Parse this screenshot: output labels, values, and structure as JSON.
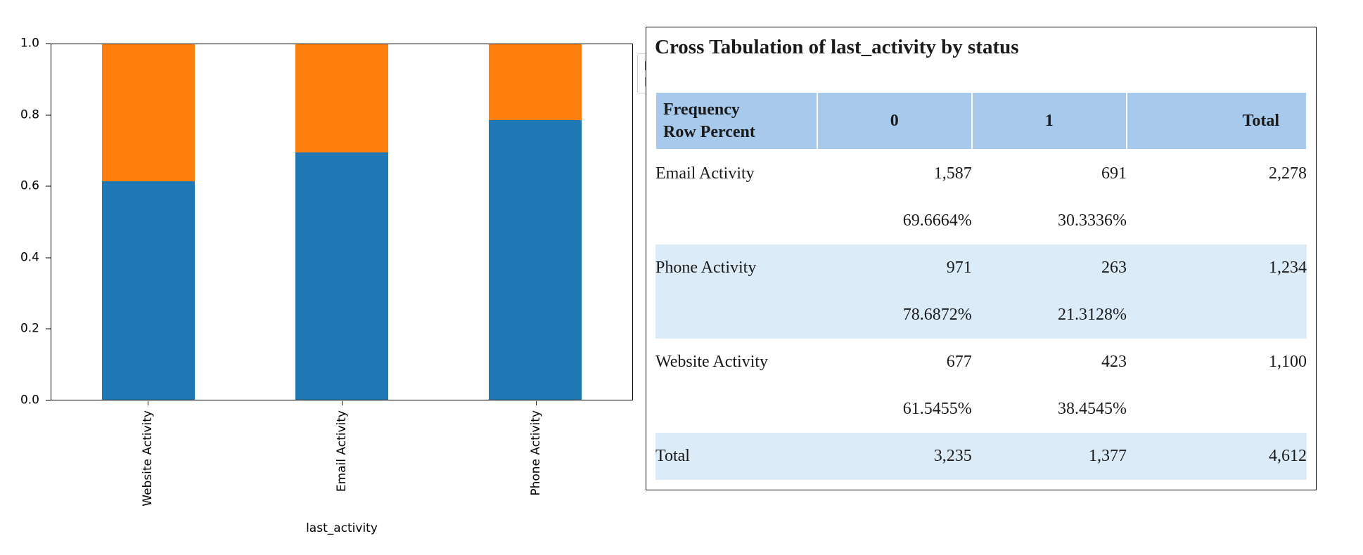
{
  "chart_data": {
    "type": "bar",
    "stacked": true,
    "normalized": true,
    "title": "",
    "xlabel": "last_activity",
    "ylabel": "",
    "categories": [
      "Website Activity",
      "Email Activity",
      "Phone Activity"
    ],
    "series": [
      {
        "name": "0",
        "color": "#1f77b4",
        "values": [
          0.615455,
          0.696664,
          0.786872
        ]
      },
      {
        "name": "1",
        "color": "#ff7f0e",
        "values": [
          0.384545,
          0.303336,
          0.213128
        ]
      }
    ],
    "ylim": [
      0.0,
      1.0
    ],
    "yticks": [
      "0.0",
      "0.2",
      "0.4",
      "0.6",
      "0.8",
      "1.0"
    ],
    "grid": false,
    "legend": {
      "position": "upper-right-outside",
      "entries": [
        "0",
        "1"
      ]
    }
  },
  "table": {
    "title": "Cross Tabulation of last_activity by status",
    "header": {
      "label_line1": "Frequency",
      "label_line2": "Row Percent",
      "col0": "0",
      "col1": "1",
      "total": "Total"
    },
    "rows": [
      {
        "label": "Email Activity",
        "freq0": "1,587",
        "freq1": "691",
        "total": "2,278",
        "pct0": "69.6664%",
        "pct1": "30.3336%"
      },
      {
        "label": "Phone Activity",
        "freq0": "971",
        "freq1": "263",
        "total": "1,234",
        "pct0": "78.6872%",
        "pct1": "21.3128%"
      },
      {
        "label": "Website Activity",
        "freq0": "677",
        "freq1": "423",
        "total": "1,100",
        "pct0": "61.5455%",
        "pct1": "38.4545%"
      }
    ],
    "total_row": {
      "label": "Total",
      "freq0": "3,235",
      "freq1": "1,377",
      "total": "4,612"
    }
  },
  "colors": {
    "bar_status_0": "#1f77b4",
    "bar_status_1": "#ff7f0e",
    "table_header_bg": "#a6c9ec",
    "table_band_bg": "#dcebf8"
  }
}
